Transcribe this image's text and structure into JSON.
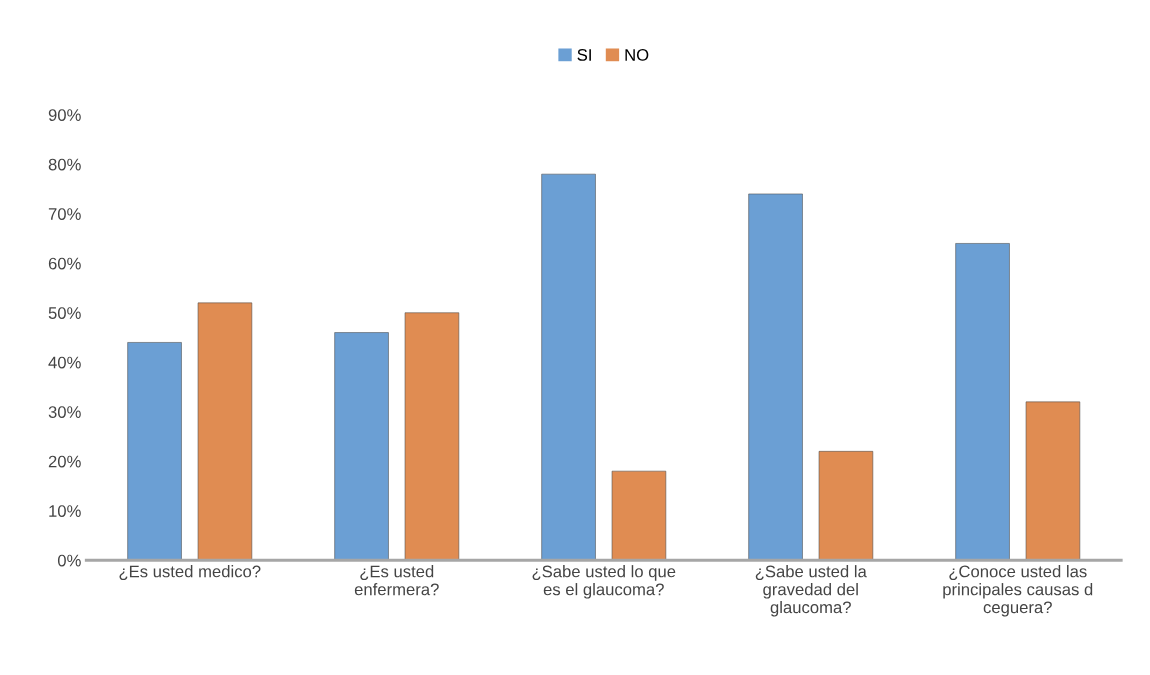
{
  "chart_data": {
    "type": "bar",
    "categories": [
      "¿Es usted medico?",
      "¿Es usted\nenfermera?",
      "¿Sabe usted lo que\nes el glaucoma?",
      "¿Sabe usted la\ngravedad del\nglaucoma?",
      "¿Conoce usted las\nprincipales causas d\nceguera?"
    ],
    "series": [
      {
        "name": "SI",
        "color": "#6b9fd4",
        "values": [
          44,
          46,
          78,
          74,
          64
        ]
      },
      {
        "name": "NO",
        "color": "#e08c52",
        "values": [
          52,
          50,
          18,
          22,
          32
        ]
      }
    ],
    "ylim": [
      0,
      90
    ],
    "yticks": [
      {
        "value": 0,
        "label": "0%"
      },
      {
        "value": 10,
        "label": "10%"
      },
      {
        "value": 20,
        "label": "20%"
      },
      {
        "value": 30,
        "label": "30%"
      },
      {
        "value": 40,
        "label": "40%"
      },
      {
        "value": 50,
        "label": "50%"
      },
      {
        "value": 60,
        "label": "60%"
      },
      {
        "value": 70,
        "label": "70%"
      },
      {
        "value": 80,
        "label": "80%"
      },
      {
        "value": 90,
        "label": "90%"
      }
    ],
    "grid": false,
    "legend": "top"
  }
}
